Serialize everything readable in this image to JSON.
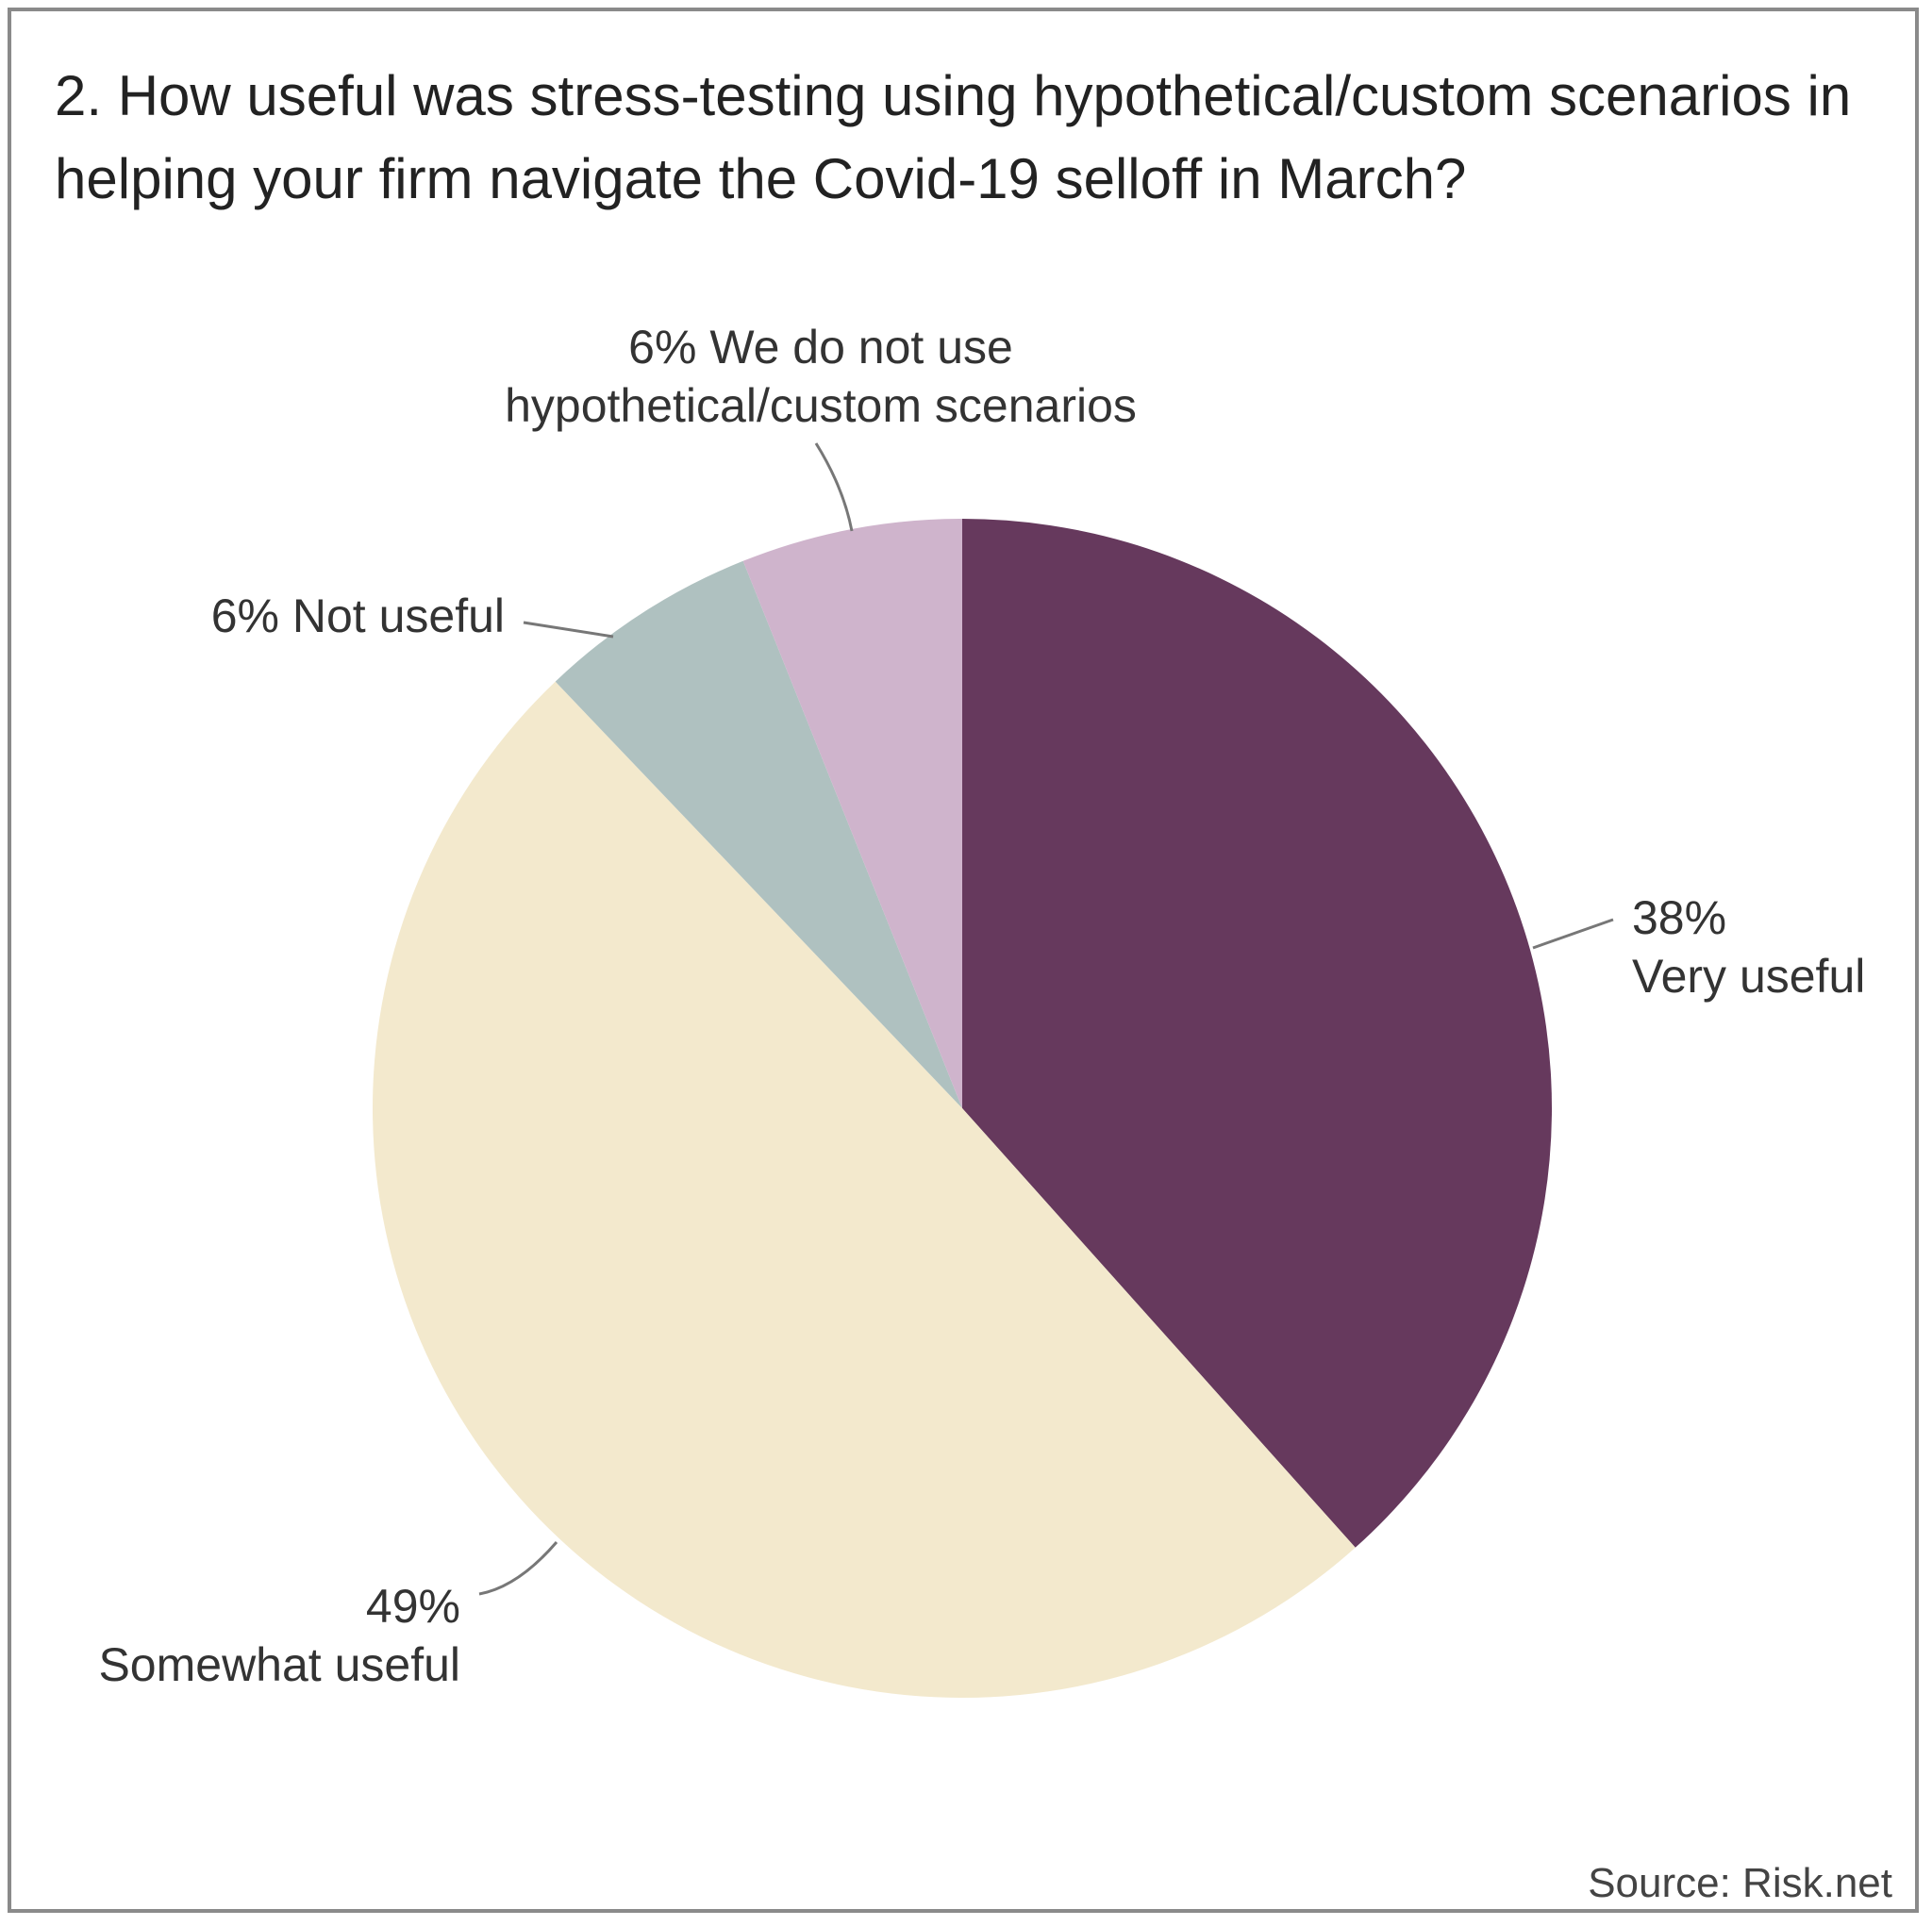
{
  "title": "2. How useful was stress-testing using hypothetical/custom scenarios in helping your firm navigate the Covid-19 selloff in March?",
  "source": "Source: Risk.net",
  "chart_data": {
    "type": "pie",
    "title": "2. How useful was stress-testing using hypothetical/custom scenarios in helping your firm navigate the Covid-19 selloff in March?",
    "start": "12 o'clock, clockwise",
    "slices": [
      {
        "name": "Very useful",
        "value": 38,
        "label_lines": [
          "38%",
          "Very useful"
        ],
        "color": "#66395d"
      },
      {
        "name": "Somewhat useful",
        "value": 49,
        "label_lines": [
          "49%",
          "Somewhat useful"
        ],
        "color": "#f3e9cd"
      },
      {
        "name": "Not useful",
        "value": 6,
        "label_lines": [
          "6% Not useful"
        ],
        "color": "#afc1c0"
      },
      {
        "name": "We do not use hypothetical/custom scenarios",
        "value": 6,
        "label_lines": [
          "6% We do not use",
          "hypothetical/custom scenarios"
        ],
        "color": "#cfb4cc"
      }
    ]
  }
}
